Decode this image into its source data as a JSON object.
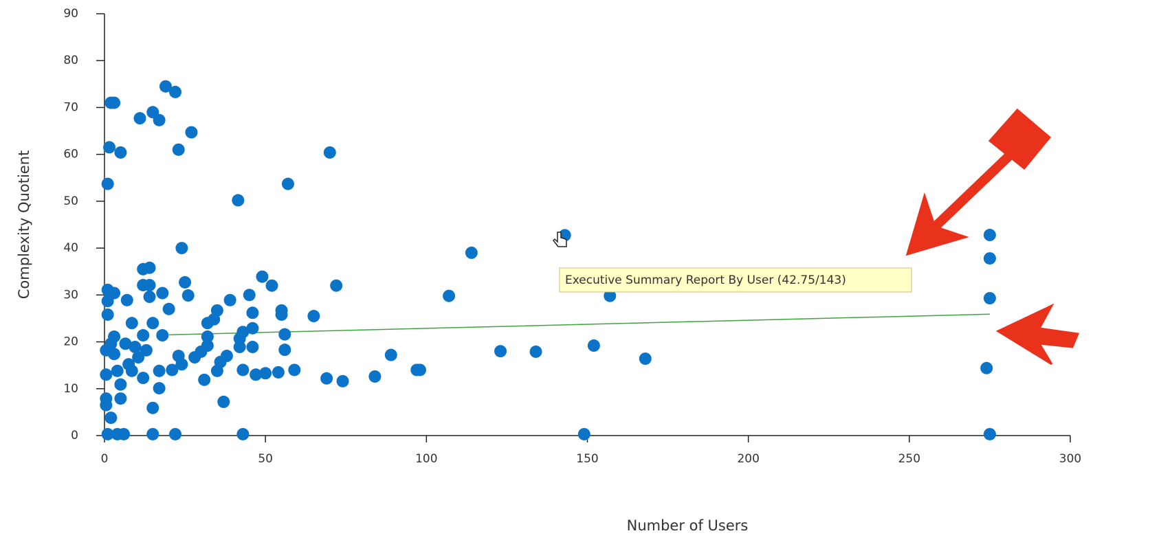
{
  "chart_data": {
    "type": "scatter",
    "xlabel": "Number of Users",
    "ylabel": "Complexity Quotient",
    "xlim": [
      0,
      300
    ],
    "ylim": [
      0,
      90
    ],
    "xticks": [
      0,
      50,
      100,
      150,
      200,
      250,
      300
    ],
    "yticks": [
      0,
      10,
      20,
      30,
      40,
      50,
      60,
      70,
      80,
      90
    ],
    "color": "#0b74c9",
    "x": [
      2,
      3,
      1.5,
      5,
      1,
      11,
      15,
      17,
      19,
      22,
      23,
      27,
      41.5,
      57,
      70,
      24,
      143,
      114,
      107,
      72,
      157,
      275,
      275,
      275,
      274,
      275,
      149,
      43,
      22,
      152,
      168,
      123,
      134,
      89,
      84,
      97,
      98,
      74,
      69,
      65,
      59,
      56,
      56,
      55,
      55,
      54,
      52,
      49,
      50,
      47,
      46,
      46,
      46,
      45,
      42,
      43,
      42,
      43,
      39,
      38,
      37,
      36,
      35,
      35,
      34,
      32,
      32,
      31,
      32,
      30,
      28,
      26,
      25,
      24,
      23,
      21,
      20,
      18,
      18,
      17,
      15,
      15,
      15,
      14,
      14,
      14,
      12,
      12,
      6,
      4,
      1,
      7,
      1,
      3,
      1,
      1,
      2,
      0.5,
      0.5,
      0.5,
      0.5,
      5,
      5,
      8.5,
      10.5,
      6.5,
      3,
      3,
      8.5,
      12,
      12,
      7.5,
      4,
      9.5,
      2,
      13,
      17
    ],
    "values": [
      71,
      71,
      61.5,
      60.4,
      53.7,
      67.7,
      69,
      67.3,
      74.5,
      73.3,
      61,
      64.7,
      50.2,
      53.7,
      60.4,
      40,
      42.75,
      39,
      29.8,
      32,
      29.8,
      42.8,
      37.8,
      29.3,
      14.4,
      0.3,
      0.3,
      0.3,
      0.3,
      19.2,
      16.4,
      18,
      17.9,
      17.2,
      12.6,
      14,
      14,
      11.6,
      12.2,
      25.5,
      14,
      18.3,
      21.6,
      26.7,
      25.8,
      13.5,
      32,
      33.9,
      13.3,
      13,
      26.2,
      22.9,
      18.9,
      30,
      18.9,
      22.1,
      20.7,
      14,
      28.9,
      17,
      7.2,
      15.7,
      13.8,
      26.7,
      24.8,
      24,
      21.1,
      11.9,
      19.2,
      17.9,
      16.7,
      29.9,
      32.7,
      15.2,
      17,
      14,
      27,
      21.4,
      30.4,
      10.1,
      5.9,
      0.3,
      24,
      29.6,
      32.1,
      35.8,
      35.5,
      32.1,
      0.3,
      0.3,
      0.3,
      28.9,
      31.1,
      30.4,
      28.7,
      25.8,
      3.8,
      6.5,
      7.9,
      13,
      18.2,
      7.9,
      10.9,
      13.8,
      16.7,
      19.6,
      17.4,
      21.1,
      24,
      21.4,
      12.3,
      15.2,
      13.8,
      18.9,
      19.6,
      18.2,
      13.8
    ],
    "trend": {
      "x": [
        20,
        275
      ],
      "values": [
        21.5,
        25.9
      ],
      "color": "#3fa33f"
    },
    "tooltip": "Executive Summary Report By User (42.75/143)"
  }
}
